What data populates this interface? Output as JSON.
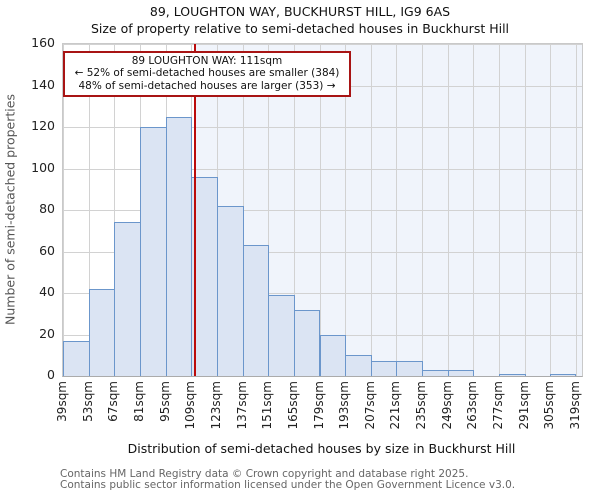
{
  "chart_data": {
    "type": "bar",
    "title": "89, LOUGHTON WAY, BUCKHURST HILL, IG9 6AS",
    "subtitle": "Size of property relative to semi-detached houses in Buckhurst Hill",
    "xlabel": "Distribution of semi-detached houses by size in Buckhurst Hill",
    "ylabel": "Number of semi-detached properties",
    "categories": [
      "39sqm",
      "53sqm",
      "67sqm",
      "81sqm",
      "95sqm",
      "109sqm",
      "123sqm",
      "137sqm",
      "151sqm",
      "165sqm",
      "179sqm",
      "193sqm",
      "207sqm",
      "221sqm",
      "235sqm",
      "249sqm",
      "263sqm",
      "277sqm",
      "291sqm",
      "305sqm",
      "319sqm"
    ],
    "bin_edges_sqm": [
      39,
      53,
      67,
      81,
      95,
      109,
      123,
      137,
      151,
      165,
      179,
      193,
      207,
      221,
      235,
      249,
      263,
      277,
      291,
      305,
      319
    ],
    "values": [
      17,
      42,
      74,
      120,
      125,
      96,
      82,
      63,
      39,
      32,
      20,
      10,
      7,
      7,
      3,
      3,
      0,
      1,
      0,
      1
    ],
    "ylim": [
      0,
      160
    ],
    "ytick_step": 20,
    "grid": true,
    "legend": "none",
    "marker": {
      "value_sqm": 111,
      "color": "#bb0b0b",
      "shade_right_color": "#f0f4fb"
    },
    "bar_fill": "#dbe4f3",
    "bar_border": "#6b96cb",
    "annotation": {
      "line1": "89 LOUGHTON WAY: 111sqm",
      "line2": "← 52% of semi-detached houses are smaller (384)",
      "line3": "48% of semi-detached houses are larger (353) →"
    }
  },
  "footer": {
    "line1": "Contains HM Land Registry data © Crown copyright and database right 2025.",
    "line2": "Contains public sector information licensed under the Open Government Licence v3.0."
  }
}
